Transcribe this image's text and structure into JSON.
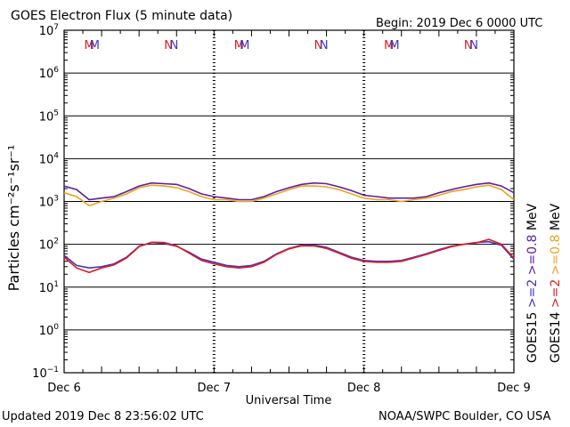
{
  "header": {
    "title": "GOES Electron Flux (5 minute data)",
    "begin": "Begin: 2019 Dec 6 0000 UTC"
  },
  "footer": {
    "updated": "Updated 2019 Dec  8 23:56:02 UTC",
    "source": "NOAA/SWPC Boulder, CO USA"
  },
  "colors": {
    "goes15_gt2": "#3a35c8",
    "goes14_gt2": "#e41a1c",
    "goes15_gt08": "#5a1fa0",
    "goes14_gt08": "#f0a020",
    "grid": "#000000",
    "threshold": "#000000"
  },
  "chart_data": {
    "type": "line",
    "title": "GOES Electron Flux (5 minute data)",
    "xlabel": "Universal Time",
    "ylabel": "Particles cm⁻²s⁻¹sr⁻¹",
    "y_scale": "log",
    "ylim": [
      0.1,
      10000000
    ],
    "y_ticks": [
      {
        "base": "10",
        "exp": "7"
      },
      {
        "base": "10",
        "exp": "6"
      },
      {
        "base": "10",
        "exp": "5"
      },
      {
        "base": "10",
        "exp": "4"
      },
      {
        "base": "10",
        "exp": "3"
      },
      {
        "base": "10",
        "exp": "2"
      },
      {
        "base": "10",
        "exp": "1"
      },
      {
        "base": "10",
        "exp": "0"
      },
      {
        "base": "10",
        "exp": "−1"
      }
    ],
    "x_ticks": [
      "Dec 6",
      "Dec 7",
      "Dec 8",
      "Dec 9"
    ],
    "xlim_hours": [
      0,
      72
    ],
    "threshold": 1000,
    "grid": true,
    "markers": [
      {
        "label": "M",
        "color": "#e41a1c",
        "hour": 4.0
      },
      {
        "label": "M",
        "color": "#3a35c8",
        "hour": 4.9
      },
      {
        "label": "N",
        "color": "#e41a1c",
        "hour": 16.7
      },
      {
        "label": "N",
        "color": "#3a35c8",
        "hour": 17.6
      },
      {
        "label": "M",
        "color": "#e41a1c",
        "hour": 28.0
      },
      {
        "label": "M",
        "color": "#3a35c8",
        "hour": 28.9
      },
      {
        "label": "N",
        "color": "#e41a1c",
        "hour": 40.7
      },
      {
        "label": "N",
        "color": "#3a35c8",
        "hour": 41.6
      },
      {
        "label": "M",
        "color": "#e41a1c",
        "hour": 52.0
      },
      {
        "label": "M",
        "color": "#3a35c8",
        "hour": 52.9
      },
      {
        "label": "N",
        "color": "#e41a1c",
        "hour": 64.7
      },
      {
        "label": "N",
        "color": "#3a35c8",
        "hour": 65.6
      }
    ],
    "legend": {
      "goes15": "GOES15",
      "goes14": "GOES14",
      "goes15_gt2": ">=2",
      "goes14_gt2": ">=2",
      "goes15_gt08": ">=0.8",
      "goes14_gt08": ">=0.8",
      "unit": "MeV"
    },
    "x_hours": [
      0,
      2,
      4,
      6,
      8,
      10,
      12,
      14,
      16,
      18,
      20,
      22,
      24,
      26,
      28,
      30,
      32,
      34,
      36,
      38,
      40,
      42,
      44,
      46,
      48,
      50,
      52,
      54,
      56,
      58,
      60,
      62,
      64,
      66,
      68,
      70,
      72
    ],
    "series": [
      {
        "name": "GOES15 >=0.8 MeV",
        "color": "#5a1fa0",
        "values": [
          2300,
          1900,
          1100,
          1200,
          1300,
          1700,
          2300,
          2700,
          2600,
          2500,
          2000,
          1500,
          1300,
          1200,
          1100,
          1100,
          1300,
          1700,
          2100,
          2500,
          2700,
          2600,
          2200,
          1800,
          1400,
          1300,
          1200,
          1200,
          1200,
          1300,
          1600,
          1900,
          2200,
          2500,
          2700,
          2300,
          1600
        ]
      },
      {
        "name": "GOES14 >=0.8 MeV",
        "color": "#f0a020",
        "values": [
          1600,
          1300,
          800,
          1000,
          1200,
          1500,
          2100,
          2400,
          2300,
          2100,
          1700,
          1300,
          1100,
          1100,
          1000,
          1000,
          1200,
          1500,
          1900,
          2300,
          2300,
          2200,
          1900,
          1500,
          1200,
          1100,
          1100,
          1000,
          1100,
          1200,
          1400,
          1700,
          1900,
          2200,
          2400,
          1900,
          1100
        ]
      },
      {
        "name": "GOES15 >=2 MeV",
        "color": "#3a35c8",
        "values": [
          55,
          32,
          28,
          30,
          35,
          50,
          90,
          110,
          105,
          90,
          65,
          45,
          38,
          32,
          30,
          32,
          40,
          60,
          80,
          95,
          95,
          85,
          65,
          50,
          42,
          40,
          40,
          42,
          50,
          60,
          75,
          90,
          100,
          110,
          115,
          95,
          45
        ]
      },
      {
        "name": "GOES14 >=2 MeV",
        "color": "#e41a1c",
        "values": [
          50,
          28,
          22,
          28,
          33,
          48,
          88,
          112,
          110,
          92,
          62,
          42,
          35,
          30,
          28,
          30,
          38,
          58,
          78,
          92,
          92,
          80,
          62,
          47,
          40,
          38,
          38,
          40,
          48,
          58,
          72,
          88,
          100,
          108,
          130,
          100,
          48
        ]
      }
    ]
  }
}
